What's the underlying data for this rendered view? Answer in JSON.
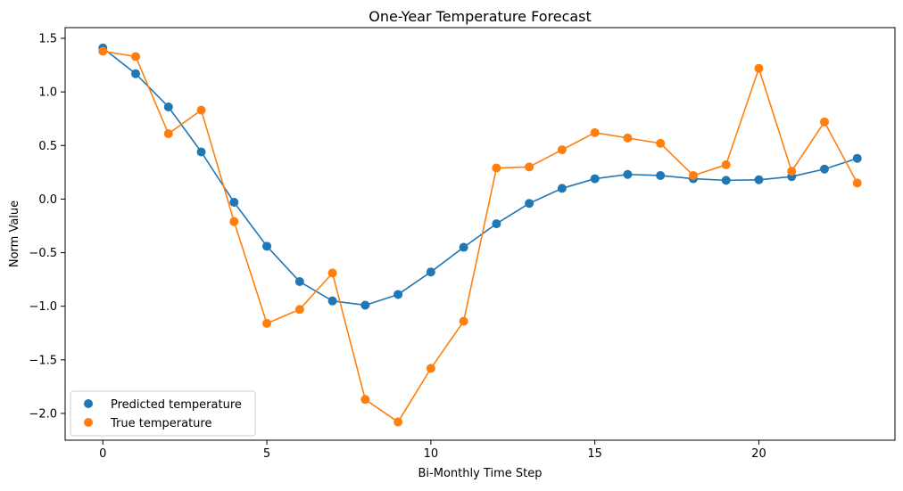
{
  "chart_data": {
    "type": "line",
    "title": "One-Year Temperature Forecast",
    "xlabel": "Bi-Monthly Time Step",
    "ylabel": "Norm Value",
    "xlim": [
      -1.15,
      24.15
    ],
    "ylim": [
      -2.25,
      1.6
    ],
    "xticks": [
      0,
      5,
      10,
      15,
      20
    ],
    "xtick_labels": [
      "0",
      "5",
      "10",
      "15",
      "20"
    ],
    "yticks": [
      1.5,
      1.0,
      0.5,
      0.0,
      -0.5,
      -1.0,
      -1.5,
      -2.0
    ],
    "ytick_labels": [
      "1.5",
      "1.0",
      "0.5",
      "0.0",
      "−0.5",
      "−1.0",
      "−1.5",
      "−2.0"
    ],
    "grid": false,
    "legend_position": "lower-left",
    "x": [
      0,
      1,
      2,
      3,
      4,
      5,
      6,
      7,
      8,
      9,
      10,
      11,
      12,
      13,
      14,
      15,
      16,
      17,
      18,
      19,
      20,
      21,
      22,
      23
    ],
    "series": [
      {
        "name": "Predicted temperature",
        "color": "#1f77b4",
        "values": [
          1.41,
          1.17,
          0.86,
          0.44,
          -0.03,
          -0.44,
          -0.77,
          -0.95,
          -0.99,
          -0.89,
          -0.68,
          -0.45,
          -0.23,
          -0.04,
          0.1,
          0.19,
          0.23,
          0.22,
          0.19,
          0.175,
          0.18,
          0.21,
          0.28,
          0.38
        ]
      },
      {
        "name": "True temperature",
        "color": "#ff7f0e",
        "values": [
          1.38,
          1.33,
          0.61,
          0.83,
          -0.21,
          -1.16,
          -1.03,
          -0.69,
          -1.87,
          -2.08,
          -1.58,
          -1.14,
          0.29,
          0.3,
          0.46,
          0.62,
          0.57,
          0.52,
          0.22,
          0.32,
          1.22,
          0.26,
          0.72,
          0.15
        ]
      }
    ]
  }
}
